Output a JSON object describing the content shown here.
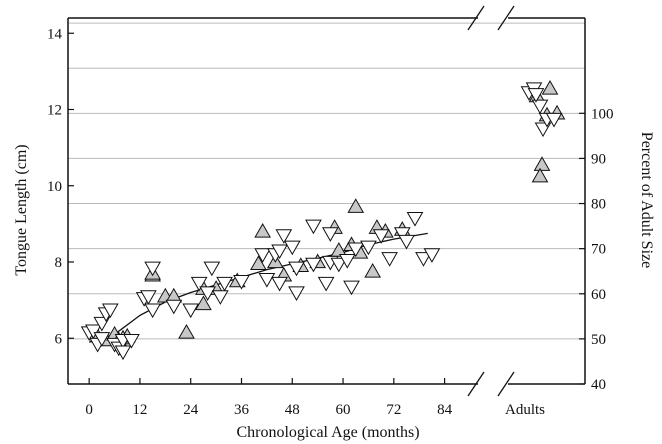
{
  "chart_data": {
    "type": "scatter",
    "title": "",
    "xlabel": "Chronological Age (months)",
    "ylabel_left": "Tongue Length (cm)",
    "ylabel_right": "Percent of Adult Size",
    "xlim": [
      -5,
      90
    ],
    "x_ticks": [
      0,
      12,
      24,
      36,
      48,
      60,
      72,
      84
    ],
    "x_break_label": "Adults",
    "ylim_left": [
      4.8,
      14.4
    ],
    "y_ticks_left": [
      6,
      8,
      10,
      12,
      14
    ],
    "y_ticks_right": [
      40,
      50,
      60,
      70,
      80,
      90,
      100
    ],
    "grid": "horizontal at right-axis ticks",
    "colors": {
      "up_triangle_fill": "#c8c8c8",
      "down_triangle_fill": "#ffffff",
      "stroke": "#111111",
      "grid": "#bbbbbb"
    },
    "series": [
      {
        "marker": "triangle-up",
        "points": [
          [
            2,
            6.05
          ],
          [
            4,
            5.95
          ],
          [
            6,
            6.1
          ],
          [
            7,
            5.95
          ],
          [
            8,
            6.0
          ],
          [
            9,
            6.05
          ],
          [
            15,
            7.65
          ],
          [
            15,
            7.7
          ],
          [
            18,
            7.1
          ],
          [
            20,
            7.1
          ],
          [
            23,
            6.15
          ],
          [
            27,
            6.9
          ],
          [
            27,
            7.3
          ],
          [
            30,
            7.3
          ],
          [
            35,
            7.5
          ],
          [
            40,
            7.95
          ],
          [
            41,
            8.8
          ],
          [
            44,
            8.0
          ],
          [
            46,
            7.65
          ],
          [
            50,
            7.9
          ],
          [
            54,
            8.0
          ],
          [
            58,
            8.9
          ],
          [
            59,
            8.3
          ],
          [
            62,
            8.45
          ],
          [
            63,
            9.45
          ],
          [
            64,
            8.25
          ],
          [
            67,
            7.75
          ],
          [
            68,
            8.9
          ],
          [
            70,
            8.8
          ],
          [
            74,
            8.85
          ]
        ],
        "adults": [
          [
            1,
            12.35
          ],
          [
            2,
            11.85
          ],
          [
            2.3,
            12.55
          ],
          [
            3,
            11.9
          ],
          [
            1.5,
            10.55
          ],
          [
            1.3,
            10.25
          ]
        ]
      },
      {
        "marker": "triangle-down",
        "points": [
          [
            0,
            6.15
          ],
          [
            1,
            6.2
          ],
          [
            2,
            5.85
          ],
          [
            3,
            6.0
          ],
          [
            3,
            6.4
          ],
          [
            4,
            6.65
          ],
          [
            5,
            6.75
          ],
          [
            6,
            5.85
          ],
          [
            7,
            5.75
          ],
          [
            8,
            5.95
          ],
          [
            8,
            5.65
          ],
          [
            10,
            5.95
          ],
          [
            13,
            7.05
          ],
          [
            14,
            7.1
          ],
          [
            15,
            7.85
          ],
          [
            15,
            6.75
          ],
          [
            20,
            6.85
          ],
          [
            24,
            6.75
          ],
          [
            26,
            7.45
          ],
          [
            28,
            7.2
          ],
          [
            29,
            7.85
          ],
          [
            31,
            7.1
          ],
          [
            32,
            7.45
          ],
          [
            36,
            7.5
          ],
          [
            41,
            8.2
          ],
          [
            42,
            7.55
          ],
          [
            44,
            8.2
          ],
          [
            45,
            8.3
          ],
          [
            45,
            7.45
          ],
          [
            46,
            8.7
          ],
          [
            48,
            8.4
          ],
          [
            49,
            7.2
          ],
          [
            49,
            7.85
          ],
          [
            53,
            7.95
          ],
          [
            53,
            8.95
          ],
          [
            56,
            7.45
          ],
          [
            57,
            8.0
          ],
          [
            57,
            8.75
          ],
          [
            59,
            7.95
          ],
          [
            61,
            8.05
          ],
          [
            62,
            7.35
          ],
          [
            63,
            8.35
          ],
          [
            66,
            8.4
          ],
          [
            69,
            8.7
          ],
          [
            71,
            8.1
          ],
          [
            74,
            8.75
          ],
          [
            75,
            8.55
          ],
          [
            77,
            9.15
          ],
          [
            79,
            8.1
          ],
          [
            81,
            8.2
          ]
        ],
        "adults": [
          [
            0.2,
            12.45
          ],
          [
            0.7,
            12.55
          ],
          [
            1.3,
            12.1
          ],
          [
            1.6,
            11.5
          ],
          [
            2.0,
            11.75
          ],
          [
            2.7,
            11.75
          ],
          [
            0.9,
            12.4
          ]
        ]
      }
    ],
    "trend_line": [
      [
        0,
        5.9
      ],
      [
        6,
        6.1
      ],
      [
        12,
        6.6
      ],
      [
        18,
        6.95
      ],
      [
        24,
        7.2
      ],
      [
        30,
        7.4
      ],
      [
        36,
        7.6
      ],
      [
        42,
        7.8
      ],
      [
        48,
        7.95
      ],
      [
        54,
        8.1
      ],
      [
        60,
        8.25
      ],
      [
        66,
        8.45
      ],
      [
        72,
        8.6
      ],
      [
        80,
        8.75
      ]
    ]
  }
}
